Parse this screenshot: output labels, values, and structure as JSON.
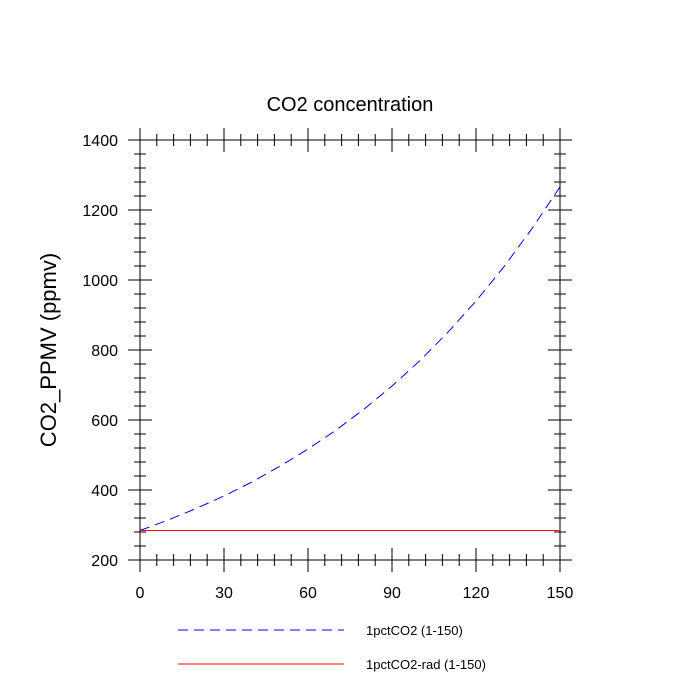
{
  "chart_data": {
    "type": "line",
    "title": "CO2 concentration",
    "xlabel": "",
    "ylabel": "CO2_PPMV  (ppmv)",
    "xlim": [
      0,
      150
    ],
    "ylim": [
      200,
      1400
    ],
    "xticks": [
      0,
      30,
      60,
      90,
      120,
      150
    ],
    "yticks": [
      200,
      400,
      600,
      800,
      1000,
      1200,
      1400
    ],
    "grid": false,
    "legend_position": "bottom",
    "series": [
      {
        "name": "1pctCO2 (1-150)",
        "color": "#0000ff",
        "style": "dashed",
        "x": [
          0,
          10,
          20,
          30,
          40,
          50,
          60,
          70,
          80,
          90,
          100,
          110,
          120,
          130,
          140,
          150
        ],
        "y": [
          284.3,
          314,
          347,
          383,
          423,
          468,
          517,
          571,
          631,
          697,
          770,
          851,
          940,
          1038,
          1147,
          1266
        ]
      },
      {
        "name": "1pctCO2-rad (1-150)",
        "color": "#ff0000",
        "style": "solid",
        "x": [
          0,
          150
        ],
        "y": [
          284.3,
          284.3
        ]
      }
    ]
  }
}
